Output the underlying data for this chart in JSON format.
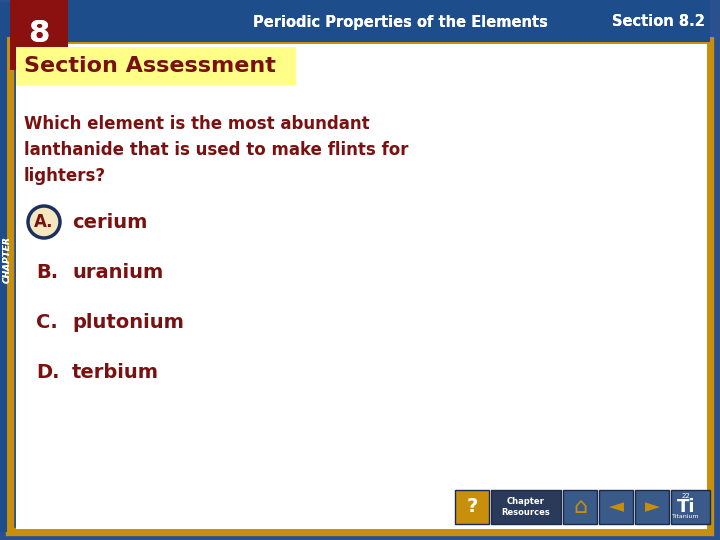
{
  "header_bg": "#1e4d8c",
  "header_text": "Periodic Properties of the Elements",
  "header_section": "Section 8.2",
  "chapter_num": "8",
  "chapter_label": "CHAPTER",
  "outer_border_color": "#c8900a",
  "inner_bg": "#ffffff",
  "title": "Section Assessment",
  "title_bg": "#ffff88",
  "title_color": "#7a1010",
  "question": "Which element is the most abundant\nlanthanide that is used to make flints for\nlighters?",
  "question_color": "#7a1010",
  "options": [
    "cerium",
    "uranium",
    "plutonium",
    "terbium"
  ],
  "option_labels": [
    "A.",
    "B.",
    "C.",
    "D."
  ],
  "option_color": "#7a1010",
  "label_color": "#7a1010",
  "selected_option": 0,
  "selected_circle_fill": "#f5e8c0",
  "selected_circle_border": "#1a3060",
  "background_outer": "#2a5090",
  "chap_box_color": "#8b1010",
  "footer_question_bg": "#c8900a",
  "footer_btn_bg": "#3a5a8a",
  "footer_chapter_bg": "#2a3a5a",
  "nav_arrow_color": "#c8900a",
  "ti_text_color": "#ffffff"
}
